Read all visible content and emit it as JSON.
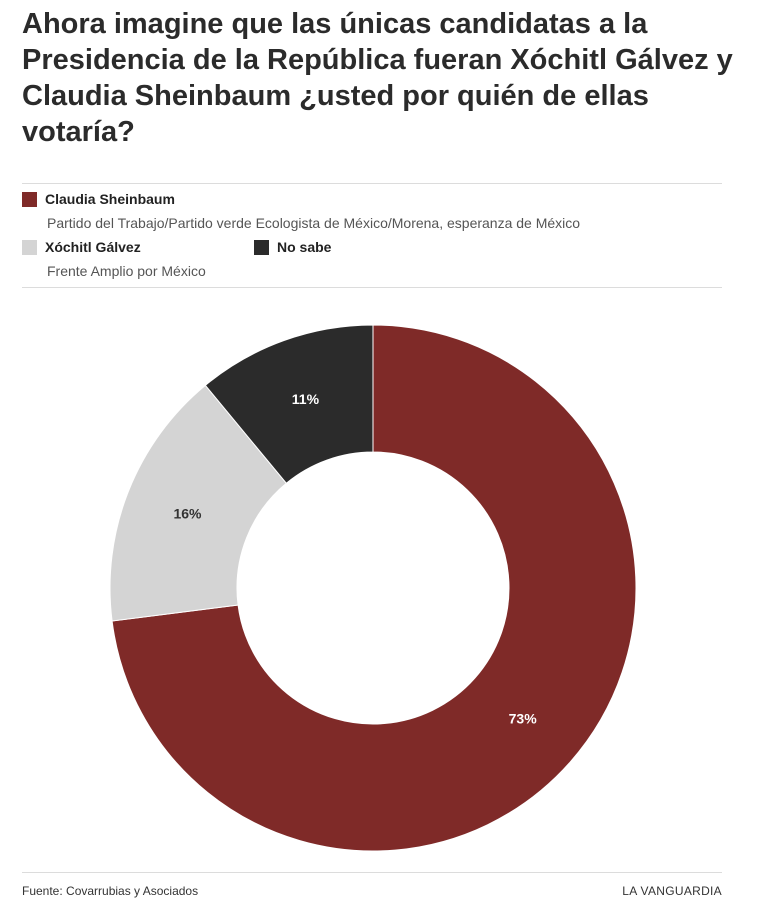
{
  "chart_data": {
    "type": "pie",
    "title": "Ahora imagine que las únicas candidatas a la Presidencia de la República fueran Xóchitl Gálvez y Claudia Sheinbaum ¿usted por quién de ellas votaría?",
    "series": [
      {
        "name": "Claudia Sheinbaum",
        "subtitle": "Partido del Trabajo/Partido verde Ecologista de México/Morena, esperanza de México",
        "value": 73,
        "label": "73%",
        "color": "#7f2a28",
        "label_color": "#ffffff"
      },
      {
        "name": "Xóchitl Gálvez",
        "subtitle": "Frente Amplio por México",
        "value": 16,
        "label": "16%",
        "color": "#d4d4d4",
        "label_color": "#333333"
      },
      {
        "name": "No sabe",
        "subtitle": "",
        "value": 11,
        "label": "11%",
        "color": "#2b2b2b",
        "label_color": "#ffffff"
      }
    ],
    "donut": true,
    "start": "top",
    "direction": "clockwise",
    "legend_position": "top"
  },
  "footer": {
    "source": "Fuente: Covarrubias y Asociados",
    "brand": "LA VANGUARDIA"
  }
}
